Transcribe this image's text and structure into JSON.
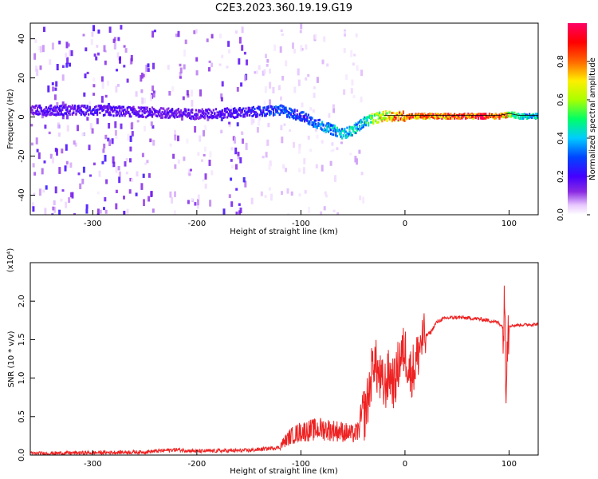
{
  "title": "C2E3.2023.360.19.19.G19",
  "chart_data": [
    {
      "type": "heatmap",
      "xlabel": "Height of straight line (km)",
      "ylabel": "Frequency (Hz)",
      "xlim": [
        -360,
        128
      ],
      "ylim": [
        -50,
        48
      ],
      "xticks": [
        -300,
        -200,
        -100,
        0,
        100
      ],
      "yticks": [
        -40,
        -20,
        0,
        20,
        40
      ],
      "colorbar": {
        "label": "Normalized spectral amplitude",
        "range": [
          0.0,
          1.0
        ],
        "ticks": [
          0.0,
          0.2,
          0.4,
          0.6,
          0.8
        ],
        "colors": [
          "#ffffff",
          "#e8c8ff",
          "#8a2be2",
          "#4400ff",
          "#0044ff",
          "#00ccff",
          "#00ff66",
          "#aaff00",
          "#ffee00",
          "#ff6600",
          "#ff0000",
          "#ff0066"
        ]
      },
      "ridge": {
        "x": [
          -360,
          -300,
          -250,
          -200,
          -150,
          -120,
          -100,
          -80,
          -60,
          -50,
          -40,
          -30,
          -20,
          -10,
          0,
          20,
          50,
          90,
          100,
          110,
          128
        ],
        "frequency": [
          4,
          4,
          3,
          2,
          3,
          4,
          1,
          -4,
          -8,
          -6,
          -2,
          0,
          1,
          1,
          1,
          1,
          1,
          1,
          2,
          1,
          1
        ],
        "amplitude": [
          0.25,
          0.28,
          0.25,
          0.25,
          0.3,
          0.4,
          0.35,
          0.45,
          0.5,
          0.5,
          0.5,
          0.7,
          0.75,
          0.9,
          0.9,
          0.9,
          0.95,
          0.95,
          0.7,
          0.5,
          0.5
        ]
      },
      "noise_regions": [
        {
          "x_range": [
            -360,
            -240
          ],
          "amplitude": 0.3
        },
        {
          "x_range": [
            -230,
            -185
          ],
          "amplitude": 0.2
        },
        {
          "x_range": [
            -180,
            -153
          ],
          "amplitude": 0.3
        },
        {
          "x_range": [
            -150,
            -40
          ],
          "amplitude": 0.1
        }
      ]
    },
    {
      "type": "line",
      "xlabel": "Height of straight line (km)",
      "ylabel": "SNR (10 * v/v)",
      "y_multiplier": "(x10⁴)",
      "xlim": [
        -360,
        128
      ],
      "ylim": [
        0,
        2.5
      ],
      "xticks": [
        -300,
        -200,
        -100,
        0,
        100
      ],
      "yticks": [
        0.0,
        0.5,
        1.0,
        1.5,
        2.0
      ],
      "color": "#ee2222",
      "series": [
        {
          "x": [
            -360,
            -300,
            -250,
            -220,
            -200,
            -150,
            -120,
            -110,
            -100,
            -80,
            -60,
            -50,
            -45,
            -40,
            -35,
            -30,
            -25,
            -20,
            -15,
            -10,
            -5,
            0,
            5,
            10,
            15,
            20,
            25,
            30,
            35,
            40,
            50,
            60,
            70,
            80,
            90,
            95,
            96,
            97,
            98,
            100,
            110,
            128
          ],
          "values": [
            0.02,
            0.03,
            0.04,
            0.07,
            0.05,
            0.06,
            0.1,
            0.2,
            0.25,
            0.28,
            0.25,
            0.22,
            0.25,
            0.5,
            0.8,
            1.3,
            1.05,
            0.9,
            1.1,
            0.95,
            1.3,
            1.4,
            1.1,
            1.2,
            1.5,
            1.55,
            1.6,
            1.72,
            1.76,
            1.78,
            1.79,
            1.78,
            1.77,
            1.75,
            1.72,
            1.65,
            2.1,
            1.0,
            1.55,
            1.68,
            1.69,
            1.7
          ]
        }
      ]
    }
  ]
}
